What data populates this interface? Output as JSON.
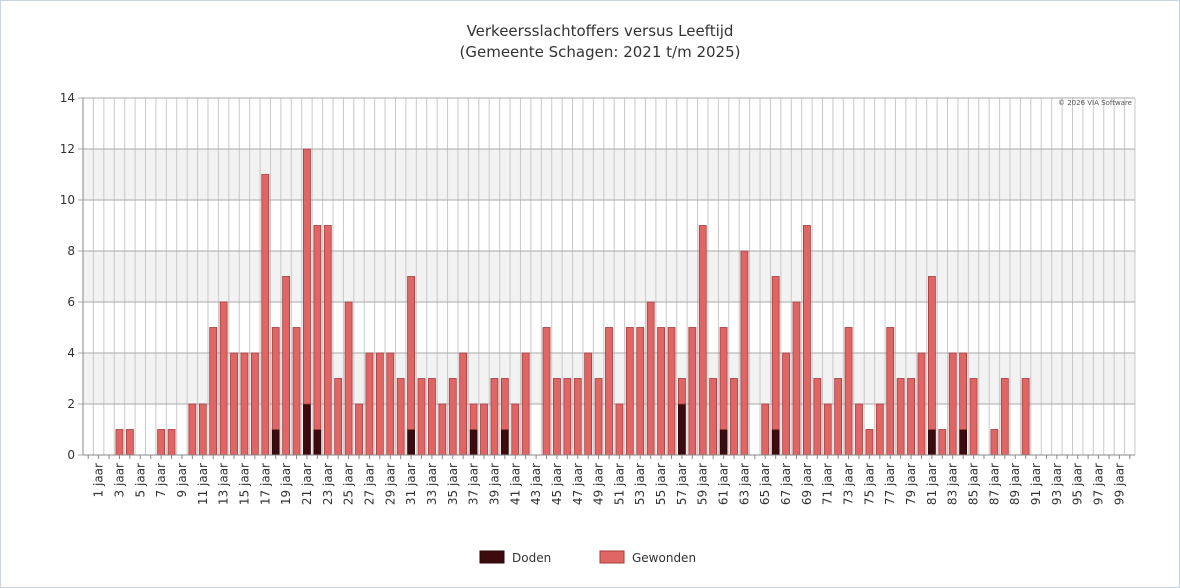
{
  "chart_data": {
    "type": "bar",
    "stacked": true,
    "title": "Verkeersslachtoffers versus Leeftijd",
    "subtitle": "(Gemeente Schagen: 2021 t/m 2025)",
    "credit": "© 2026 VIA Software",
    "categories": [
      null,
      "1 jaar",
      null,
      "3 jaar",
      null,
      "5 jaar",
      null,
      "7 jaar",
      null,
      "9 jaar",
      null,
      "11 jaar",
      null,
      "13 jaar",
      null,
      "15 jaar",
      null,
      "17 jaar",
      null,
      "19 jaar",
      null,
      "21 jaar",
      null,
      "23 jaar",
      null,
      "25 jaar",
      null,
      "27 jaar",
      null,
      "29 jaar",
      null,
      "31 jaar",
      null,
      "33 jaar",
      null,
      "35 jaar",
      null,
      "37 jaar",
      null,
      "39 jaar",
      null,
      "41 jaar",
      null,
      "43 jaar",
      null,
      "45 jaar",
      null,
      "47 jaar",
      null,
      "49 jaar",
      null,
      "51 jaar",
      null,
      "53 jaar",
      null,
      "55 jaar",
      null,
      "57 jaar",
      null,
      "59 jaar",
      null,
      "61 jaar",
      null,
      "63 jaar",
      null,
      "65 jaar",
      null,
      "67 jaar",
      null,
      "69 jaar",
      null,
      "71 jaar",
      null,
      "73 jaar",
      null,
      "75 jaar",
      null,
      "77 jaar",
      null,
      "79 jaar",
      null,
      "81 jaar",
      null,
      "83 jaar",
      null,
      "85 jaar",
      null,
      "87 jaar",
      null,
      "89 jaar",
      null,
      "91 jaar",
      null,
      "93 jaar",
      null,
      "95 jaar",
      null,
      "97 jaar",
      null,
      "99 jaar",
      null
    ],
    "series": [
      {
        "name": "Doden",
        "color": "#3d0a0e",
        "values": [
          0,
          0,
          0,
          0,
          0,
          0,
          0,
          0,
          0,
          0,
          0,
          0,
          0,
          0,
          0,
          0,
          0,
          0,
          1,
          0,
          0,
          2,
          1,
          0,
          0,
          0,
          0,
          0,
          0,
          0,
          0,
          1,
          0,
          0,
          0,
          0,
          0,
          1,
          0,
          0,
          1,
          0,
          0,
          0,
          0,
          0,
          0,
          0,
          0,
          0,
          0,
          0,
          0,
          0,
          0,
          0,
          0,
          2,
          0,
          0,
          0,
          1,
          0,
          0,
          0,
          0,
          1,
          0,
          0,
          0,
          0,
          0,
          0,
          0,
          0,
          0,
          0,
          0,
          0,
          0,
          0,
          1,
          0,
          0,
          1,
          0,
          0,
          0,
          0,
          0,
          0,
          0,
          0,
          0,
          0,
          0,
          0,
          0,
          0,
          0,
          0
        ]
      },
      {
        "name": "Gewonden",
        "color": "#e06666",
        "values": [
          0,
          0,
          0,
          1,
          1,
          0,
          0,
          1,
          1,
          0,
          2,
          2,
          5,
          6,
          4,
          4,
          4,
          11,
          4,
          7,
          5,
          10,
          8,
          9,
          3,
          6,
          2,
          4,
          4,
          4,
          3,
          6,
          3,
          3,
          2,
          3,
          4,
          1,
          2,
          3,
          2,
          2,
          4,
          0,
          5,
          3,
          3,
          3,
          4,
          3,
          5,
          2,
          5,
          5,
          6,
          5,
          5,
          1,
          5,
          9,
          3,
          4,
          3,
          8,
          0,
          2,
          6,
          4,
          6,
          9,
          3,
          2,
          3,
          5,
          2,
          1,
          2,
          5,
          3,
          3,
          4,
          6,
          1,
          4,
          3,
          3,
          0,
          1,
          3,
          0,
          3,
          0,
          0,
          0,
          0,
          0,
          0,
          0,
          0,
          0,
          0
        ]
      }
    ],
    "ylim": [
      0,
      14
    ],
    "yticks": [
      0,
      2,
      4,
      6,
      8,
      10,
      12,
      14
    ],
    "grid": true,
    "legend": "bottom"
  }
}
